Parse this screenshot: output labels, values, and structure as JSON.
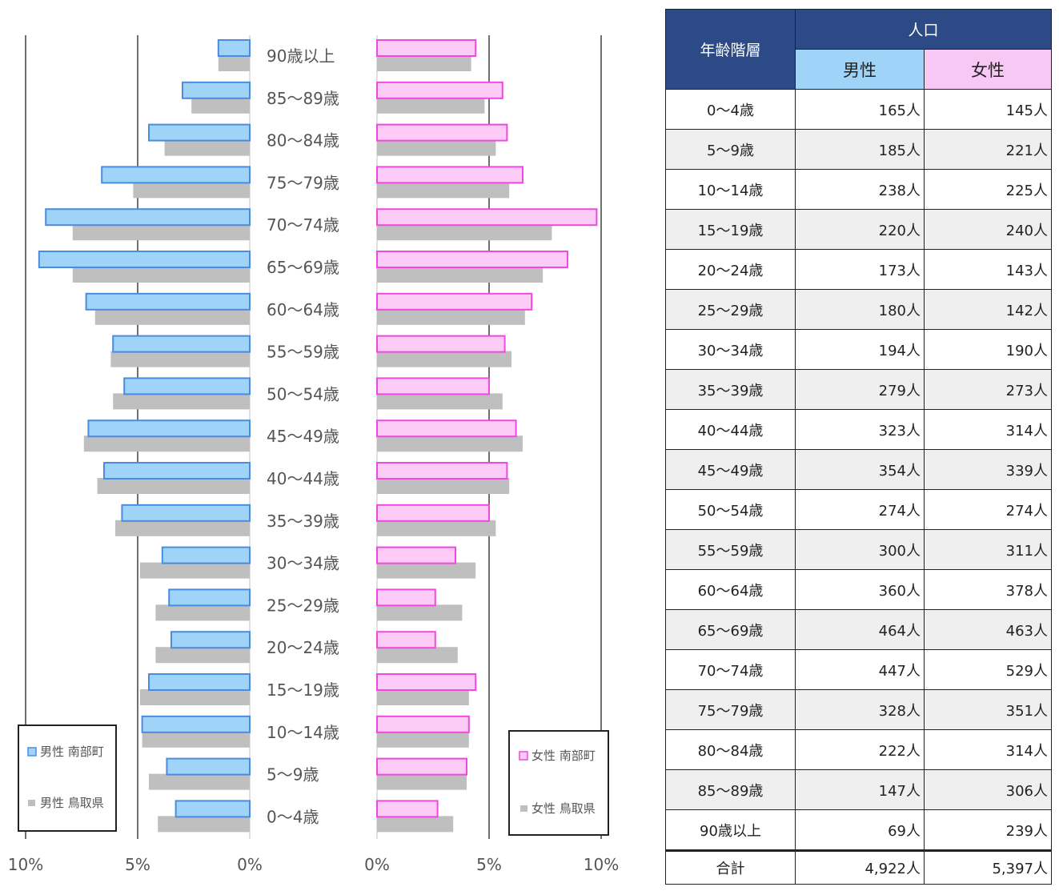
{
  "chart_data": {
    "type": "bar",
    "orientation": "horizontal-population-pyramid",
    "categories": [
      "90歳以上",
      "85〜89歳",
      "80〜84歳",
      "75〜79歳",
      "70〜74歳",
      "65〜69歳",
      "60〜64歳",
      "55〜59歳",
      "50〜54歳",
      "45〜49歳",
      "40〜44歳",
      "35〜39歳",
      "30〜34歳",
      "25〜29歳",
      "20〜24歳",
      "15〜19歳",
      "10〜14歳",
      "5〜9歳",
      "0〜4歳"
    ],
    "series": [
      {
        "name": "男性 南部町",
        "side": "left",
        "color": "#9fd3f7",
        "stroke": "#4a8de0",
        "values": [
          1.4,
          3.0,
          4.5,
          6.6,
          9.1,
          9.4,
          7.3,
          6.1,
          5.6,
          7.2,
          6.5,
          5.7,
          3.9,
          3.6,
          3.5,
          4.5,
          4.8,
          3.7,
          3.3
        ]
      },
      {
        "name": "男性 鳥取県",
        "side": "left",
        "color": "#bfbfbf",
        "values": [
          1.4,
          2.6,
          3.8,
          5.2,
          7.9,
          7.9,
          6.9,
          6.2,
          6.1,
          7.4,
          6.8,
          6.0,
          4.9,
          4.2,
          4.2,
          4.9,
          4.8,
          4.5,
          4.1
        ]
      },
      {
        "name": "女性 南部町",
        "side": "right",
        "color": "#fcccf6",
        "stroke": "#f048e0",
        "values": [
          4.4,
          5.6,
          5.8,
          6.5,
          9.8,
          8.5,
          6.9,
          5.7,
          5.0,
          6.2,
          5.8,
          5.0,
          3.5,
          2.6,
          2.6,
          4.4,
          4.1,
          4.0,
          2.7
        ]
      },
      {
        "name": "女性 鳥取県",
        "side": "right",
        "color": "#bfbfbf",
        "values": [
          4.2,
          4.8,
          5.3,
          5.9,
          7.8,
          7.4,
          6.6,
          6.0,
          5.6,
          6.5,
          5.9,
          5.3,
          4.4,
          3.8,
          3.6,
          4.1,
          4.1,
          4.0,
          3.4
        ]
      }
    ],
    "x_ticks_left": [
      "10%",
      "5%",
      "0%"
    ],
    "x_ticks_right": [
      "0%",
      "5%",
      "10%"
    ],
    "xlim": [
      0,
      10
    ],
    "grid": true,
    "legend_left": [
      "男性 南部町",
      "男性 鳥取県"
    ],
    "legend_right": [
      "女性 南部町",
      "女性 鳥取県"
    ]
  },
  "table": {
    "header_age": "年齢階層",
    "header_population": "人口",
    "header_male": "男性",
    "header_female": "女性",
    "rows": [
      {
        "age": "0〜4歳",
        "male": "165人",
        "female": "145人"
      },
      {
        "age": "5〜9歳",
        "male": "185人",
        "female": "221人"
      },
      {
        "age": "10〜14歳",
        "male": "238人",
        "female": "225人"
      },
      {
        "age": "15〜19歳",
        "male": "220人",
        "female": "240人"
      },
      {
        "age": "20〜24歳",
        "male": "173人",
        "female": "143人"
      },
      {
        "age": "25〜29歳",
        "male": "180人",
        "female": "142人"
      },
      {
        "age": "30〜34歳",
        "male": "194人",
        "female": "190人"
      },
      {
        "age": "35〜39歳",
        "male": "279人",
        "female": "273人"
      },
      {
        "age": "40〜44歳",
        "male": "323人",
        "female": "314人"
      },
      {
        "age": "45〜49歳",
        "male": "354人",
        "female": "339人"
      },
      {
        "age": "50〜54歳",
        "male": "274人",
        "female": "274人"
      },
      {
        "age": "55〜59歳",
        "male": "300人",
        "female": "311人"
      },
      {
        "age": "60〜64歳",
        "male": "360人",
        "female": "378人"
      },
      {
        "age": "65〜69歳",
        "male": "464人",
        "female": "463人"
      },
      {
        "age": "70〜74歳",
        "male": "447人",
        "female": "529人"
      },
      {
        "age": "75〜79歳",
        "male": "328人",
        "female": "351人"
      },
      {
        "age": "80〜84歳",
        "male": "222人",
        "female": "314人"
      },
      {
        "age": "85〜89歳",
        "male": "147人",
        "female": "306人"
      },
      {
        "age": "90歳以上",
        "male": "69人",
        "female": "239人"
      }
    ],
    "total": {
      "label": "合計",
      "male": "4,922人",
      "female": "5,397人"
    }
  }
}
